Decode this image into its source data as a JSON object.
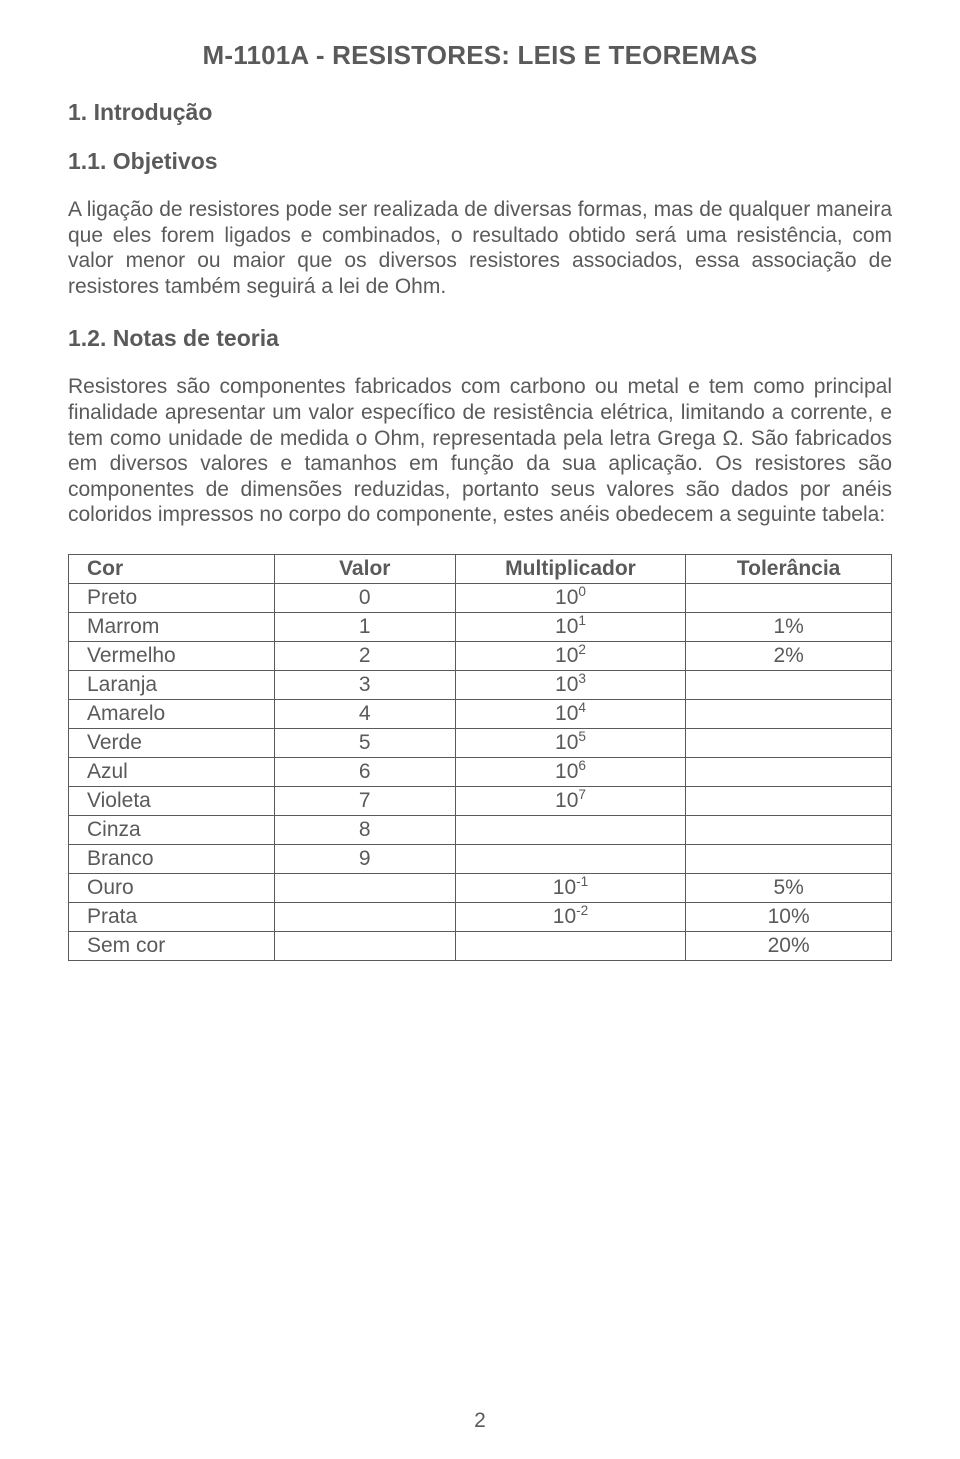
{
  "title": "M-1101A - RESISTORES: LEIS E TEOREMAS",
  "section1": {
    "num": "1. Introdução",
    "sub1": "1.1. Objetivos",
    "para1": "A ligação de resistores pode ser realizada de diversas formas, mas de qualquer maneira que eles forem ligados e combinados, o resultado obtido será uma resistência, com valor menor ou maior que os diversos resistores associados, essa associação de resistores também seguirá a lei de Ohm.",
    "sub2": "1.2. Notas de teoria",
    "para2": "Resistores são componentes fabricados com carbono ou metal e tem como principal finalidade apresentar um valor específico de resistência elétrica, limitando a corrente, e tem como unidade de medida o Ohm, representada pela letra Grega Ω. São fabricados em diversos valores e tamanhos em função da sua aplicação. Os resistores são componentes de dimensões reduzidas, portanto seus valores são dados por anéis coloridos impressos no corpo do componente, estes anéis obedecem a seguinte tabela:"
  },
  "table": {
    "headers": [
      "Cor",
      "Valor",
      "Multiplicador",
      "Tolerância"
    ],
    "rows": [
      {
        "cor": "Preto",
        "valor": "0",
        "mult": "10",
        "exp": "0",
        "tol": ""
      },
      {
        "cor": "Marrom",
        "valor": "1",
        "mult": "10",
        "exp": "1",
        "tol": "1%"
      },
      {
        "cor": "Vermelho",
        "valor": "2",
        "mult": "10",
        "exp": "2",
        "tol": "2%"
      },
      {
        "cor": "Laranja",
        "valor": "3",
        "mult": "10",
        "exp": "3",
        "tol": ""
      },
      {
        "cor": "Amarelo",
        "valor": "4",
        "mult": "10",
        "exp": "4",
        "tol": ""
      },
      {
        "cor": "Verde",
        "valor": "5",
        "mult": "10",
        "exp": "5",
        "tol": ""
      },
      {
        "cor": "Azul",
        "valor": "6",
        "mult": "10",
        "exp": "6",
        "tol": ""
      },
      {
        "cor": "Violeta",
        "valor": "7",
        "mult": "10",
        "exp": "7",
        "tol": ""
      },
      {
        "cor": "Cinza",
        "valor": "8",
        "mult": "",
        "exp": "",
        "tol": ""
      },
      {
        "cor": "Branco",
        "valor": "9",
        "mult": "",
        "exp": "",
        "tol": ""
      },
      {
        "cor": "Ouro",
        "valor": "",
        "mult": "10",
        "exp": "-1",
        "tol": "5%"
      },
      {
        "cor": "Prata",
        "valor": "",
        "mult": "10",
        "exp": "-2",
        "tol": "10%"
      },
      {
        "cor": "Sem cor",
        "valor": "",
        "mult": "",
        "exp": "",
        "tol": "20%"
      }
    ]
  },
  "pagenum": "2",
  "colors": {
    "text": "#5a5a5a",
    "border": "#5a5a5a",
    "background": "#ffffff"
  },
  "typography": {
    "title_fontsize": 26,
    "heading_fontsize": 23,
    "body_fontsize": 21,
    "font_family": "Arial"
  }
}
